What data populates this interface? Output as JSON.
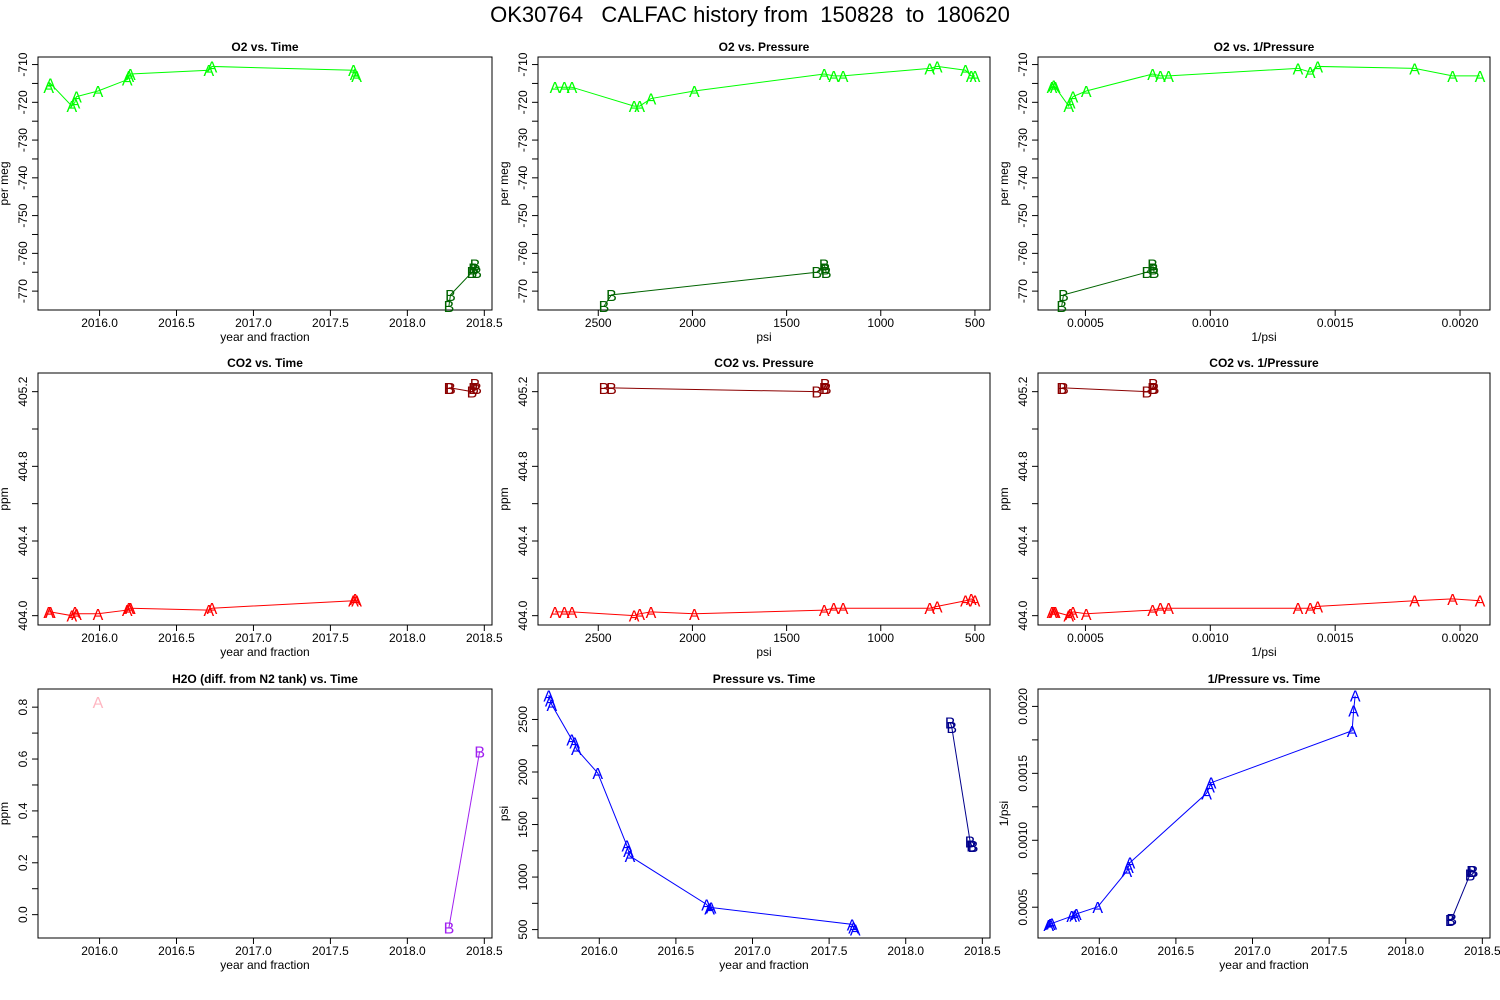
{
  "title": "OK30764   CALFAC history from  150828  to  180620",
  "chart_data": [
    {
      "type": "scatter",
      "title": "O2 vs. Time",
      "xlabel": "year and fraction",
      "ylabel": "per meg",
      "xlim": [
        2015.6,
        2018.55
      ],
      "ylim": [
        -775,
        -708
      ],
      "xticks": [
        "2016.0",
        "2016.5",
        "2017.0",
        "2017.5",
        "2018.0",
        "2018.5"
      ],
      "yticks": [
        "-710",
        "-720",
        "-730",
        "-740",
        "-750",
        "-760",
        "-770"
      ],
      "series": [
        {
          "name": "A",
          "color": "#00ff00",
          "line": true,
          "x": [
            2015.67,
            2015.68,
            2015.82,
            2015.84,
            2015.85,
            2015.99,
            2016.18,
            2016.19,
            2016.2,
            2016.71,
            2016.73,
            2017.65,
            2017.66,
            2017.67
          ],
          "y": [
            -716,
            -715,
            -721,
            -720,
            -718.5,
            -717,
            -714,
            -713,
            -712.5,
            -711.5,
            -710.5,
            -711.5,
            -712.5,
            -713
          ]
        },
        {
          "name": "B",
          "color": "#006400",
          "line": true,
          "x": [
            2018.27,
            2018.28,
            2018.42,
            2018.43,
            2018.44,
            2018.45
          ],
          "y": [
            -774,
            -771,
            -765,
            -764,
            -763,
            -765
          ]
        }
      ]
    },
    {
      "type": "scatter",
      "title": "O2 vs. Pressure",
      "xlabel": "psi",
      "ylabel": "per meg",
      "xlim": [
        2820,
        420
      ],
      "ylim": [
        -775,
        -708
      ],
      "xticks": [
        "2500",
        "2000",
        "1500",
        "1000",
        "500"
      ],
      "yticks": [
        "-710",
        "-720",
        "-730",
        "-740",
        "-750",
        "-760",
        "-770"
      ],
      "series": [
        {
          "name": "A",
          "color": "#00ff00",
          "line": true,
          "x": [
            2730,
            2680,
            2640,
            2310,
            2280,
            2220,
            1990,
            1300,
            1250,
            1200,
            740,
            700,
            550,
            520,
            500
          ],
          "y": [
            -716,
            -716,
            -716,
            -721,
            -721,
            -719,
            -717,
            -712.5,
            -713,
            -713,
            -711,
            -710.5,
            -711.5,
            -713,
            -713
          ]
        },
        {
          "name": "B",
          "color": "#006400",
          "line": true,
          "x": [
            2470,
            2430,
            1340,
            1300,
            1295,
            1290
          ],
          "y": [
            -774,
            -771,
            -765,
            -763,
            -764,
            -765
          ]
        }
      ]
    },
    {
      "type": "scatter",
      "title": "O2 vs. 1/Pressure",
      "xlabel": "1/psi",
      "ylabel": "per meg",
      "xlim": [
        0.00031,
        0.00212
      ],
      "ylim": [
        -775,
        -708
      ],
      "xticks": [
        "0.0005",
        "0.0010",
        "0.0015",
        "0.0020"
      ],
      "yticks": [
        "-710",
        "-720",
        "-730",
        "-740",
        "-750",
        "-760",
        "-770"
      ],
      "series": [
        {
          "name": "A",
          "color": "#00ff00",
          "line": true,
          "x": [
            0.000366,
            0.000373,
            0.000379,
            0.000433,
            0.000439,
            0.00045,
            0.000503,
            0.000769,
            0.0008,
            0.000833,
            0.001351,
            0.0014,
            0.00143,
            0.001818,
            0.00197,
            0.00208
          ],
          "y": [
            -716,
            -715.5,
            -716,
            -721,
            -720,
            -718.5,
            -717,
            -712.5,
            -713,
            -713,
            -711,
            -712,
            -710.5,
            -711,
            -713,
            -713
          ]
        },
        {
          "name": "B",
          "color": "#006400",
          "line": true,
          "x": [
            0.000405,
            0.000412,
            0.000746,
            0.000769,
            0.000772,
            0.000775
          ],
          "y": [
            -774,
            -771,
            -765,
            -763,
            -764,
            -765
          ]
        }
      ]
    },
    {
      "type": "scatter",
      "title": "CO2 vs. Time",
      "xlabel": "year and fraction",
      "ylabel": "ppm",
      "xlim": [
        2015.6,
        2018.55
      ],
      "ylim": [
        403.95,
        405.3
      ],
      "xticks": [
        "2016.0",
        "2016.5",
        "2017.0",
        "2017.5",
        "2018.0",
        "2018.5"
      ],
      "yticks": [
        "404.0",
        "404.4",
        "404.8",
        "405.2"
      ],
      "series": [
        {
          "name": "A",
          "color": "#ff0000",
          "line": true,
          "x": [
            2015.67,
            2015.68,
            2015.82,
            2015.84,
            2015.85,
            2015.99,
            2016.18,
            2016.19,
            2016.2,
            2016.71,
            2016.73,
            2017.65,
            2017.66,
            2017.67
          ],
          "y": [
            404.02,
            404.02,
            404.0,
            404.02,
            404.01,
            404.01,
            404.03,
            404.04,
            404.04,
            404.03,
            404.04,
            404.08,
            404.09,
            404.08
          ]
        },
        {
          "name": "B",
          "color": "#8b0000",
          "line": true,
          "x": [
            2018.27,
            2018.28,
            2018.42,
            2018.43,
            2018.44,
            2018.45
          ],
          "y": [
            405.22,
            405.22,
            405.2,
            405.22,
            405.24,
            405.22
          ]
        }
      ]
    },
    {
      "type": "scatter",
      "title": "CO2 vs. Pressure",
      "xlabel": "psi",
      "ylabel": "ppm",
      "xlim": [
        2820,
        420
      ],
      "ylim": [
        403.95,
        405.3
      ],
      "xticks": [
        "2500",
        "2000",
        "1500",
        "1000",
        "500"
      ],
      "yticks": [
        "404.0",
        "404.4",
        "404.8",
        "405.2"
      ],
      "series": [
        {
          "name": "A",
          "color": "#ff0000",
          "line": true,
          "x": [
            2730,
            2680,
            2640,
            2310,
            2280,
            2220,
            1990,
            1300,
            1250,
            1200,
            740,
            700,
            550,
            520,
            500
          ],
          "y": [
            404.02,
            404.02,
            404.02,
            404.0,
            404.01,
            404.02,
            404.01,
            404.03,
            404.04,
            404.04,
            404.04,
            404.05,
            404.08,
            404.09,
            404.08
          ]
        },
        {
          "name": "B",
          "color": "#8b0000",
          "line": true,
          "x": [
            2470,
            2430,
            1340,
            1300,
            1295,
            1290
          ],
          "y": [
            405.22,
            405.22,
            405.2,
            405.22,
            405.24,
            405.22
          ]
        }
      ]
    },
    {
      "type": "scatter",
      "title": "CO2 vs. 1/Pressure",
      "xlabel": "1/psi",
      "ylabel": "ppm",
      "xlim": [
        0.00031,
        0.00212
      ],
      "ylim": [
        403.95,
        405.3
      ],
      "xticks": [
        "0.0005",
        "0.0010",
        "0.0015",
        "0.0020"
      ],
      "yticks": [
        "404.0",
        "404.4",
        "404.8",
        "405.2"
      ],
      "series": [
        {
          "name": "A",
          "color": "#ff0000",
          "line": true,
          "x": [
            0.000366,
            0.000373,
            0.000379,
            0.000433,
            0.000439,
            0.00045,
            0.000503,
            0.000769,
            0.0008,
            0.000833,
            0.001351,
            0.0014,
            0.00143,
            0.001818,
            0.00197,
            0.00208
          ],
          "y": [
            404.02,
            404.02,
            404.02,
            404.0,
            404.01,
            404.02,
            404.01,
            404.03,
            404.04,
            404.04,
            404.04,
            404.04,
            404.05,
            404.08,
            404.09,
            404.08
          ]
        },
        {
          "name": "B",
          "color": "#8b0000",
          "line": true,
          "x": [
            0.000405,
            0.000412,
            0.000746,
            0.000769,
            0.000772,
            0.000775
          ],
          "y": [
            405.22,
            405.22,
            405.2,
            405.22,
            405.24,
            405.22
          ]
        }
      ]
    },
    {
      "type": "scatter",
      "title": "H2O (diff. from N2 tank) vs. Time",
      "xlabel": "year and fraction",
      "ylabel": "ppm",
      "xlim": [
        2015.6,
        2018.55
      ],
      "ylim": [
        -0.09,
        0.87
      ],
      "xticks": [
        "2016.0",
        "2016.5",
        "2017.0",
        "2017.5",
        "2018.0",
        "2018.5"
      ],
      "yticks": [
        "0.0",
        "0.2",
        "0.4",
        "0.6",
        "0.8"
      ],
      "series": [
        {
          "name": "A",
          "color": "#ffb6c1",
          "line": false,
          "x": [
            2015.99
          ],
          "y": [
            0.82
          ]
        },
        {
          "name": "B",
          "color": "#a020f0",
          "line": true,
          "x": [
            2018.27,
            2018.47
          ],
          "y": [
            -0.05,
            0.63
          ]
        }
      ]
    },
    {
      "type": "scatter",
      "title": "Pressure vs. Time",
      "xlabel": "year and fraction",
      "ylabel": "psi",
      "xlim": [
        2015.6,
        2018.55
      ],
      "ylim": [
        420,
        2790
      ],
      "xticks": [
        "2016.0",
        "2016.5",
        "2017.0",
        "2017.5",
        "2018.0",
        "2018.5"
      ],
      "yticks": [
        "500",
        "1000",
        "1500",
        "2000",
        "2500"
      ],
      "series": [
        {
          "name": "A",
          "color": "#0000ff",
          "line": true,
          "x": [
            2015.67,
            2015.68,
            2015.69,
            2015.82,
            2015.84,
            2015.85,
            2015.99,
            2016.18,
            2016.19,
            2016.2,
            2016.7,
            2016.72,
            2016.73,
            2017.65,
            2017.66,
            2017.67
          ],
          "y": [
            2730,
            2680,
            2640,
            2310,
            2280,
            2220,
            1990,
            1300,
            1250,
            1200,
            740,
            700,
            710,
            550,
            520,
            500
          ]
        },
        {
          "name": "B",
          "color": "#00008b",
          "line": true,
          "x": [
            2018.29,
            2018.3,
            2018.42,
            2018.43,
            2018.44
          ],
          "y": [
            2470,
            2430,
            1340,
            1300,
            1295
          ]
        }
      ]
    },
    {
      "type": "scatter",
      "title": "1/Pressure vs. Time",
      "xlabel": "year and fraction",
      "ylabel": "1/psi",
      "xlim": [
        2015.6,
        2018.55
      ],
      "ylim": [
        0.00027,
        0.00213
      ],
      "xticks": [
        "2016.0",
        "2016.5",
        "2017.0",
        "2017.5",
        "2018.0",
        "2018.5"
      ],
      "yticks": [
        "0.0005",
        "0.0010",
        "0.0015",
        "0.0020"
      ],
      "series": [
        {
          "name": "A",
          "color": "#0000ff",
          "line": true,
          "x": [
            2015.67,
            2015.68,
            2015.69,
            2015.82,
            2015.84,
            2015.85,
            2015.99,
            2016.18,
            2016.19,
            2016.2,
            2016.7,
            2016.72,
            2016.73,
            2017.65,
            2017.66,
            2017.67
          ],
          "y": [
            0.000366,
            0.000373,
            0.000379,
            0.000433,
            0.000439,
            0.00045,
            0.000503,
            0.000769,
            0.0008,
            0.000833,
            0.001351,
            0.0014,
            0.00143,
            0.001818,
            0.00197,
            0.00208
          ]
        },
        {
          "name": "B",
          "color": "#00008b",
          "line": true,
          "x": [
            2018.29,
            2018.3,
            2018.42,
            2018.43,
            2018.44
          ],
          "y": [
            0.000405,
            0.000412,
            0.000746,
            0.000769,
            0.000772
          ]
        }
      ]
    }
  ]
}
